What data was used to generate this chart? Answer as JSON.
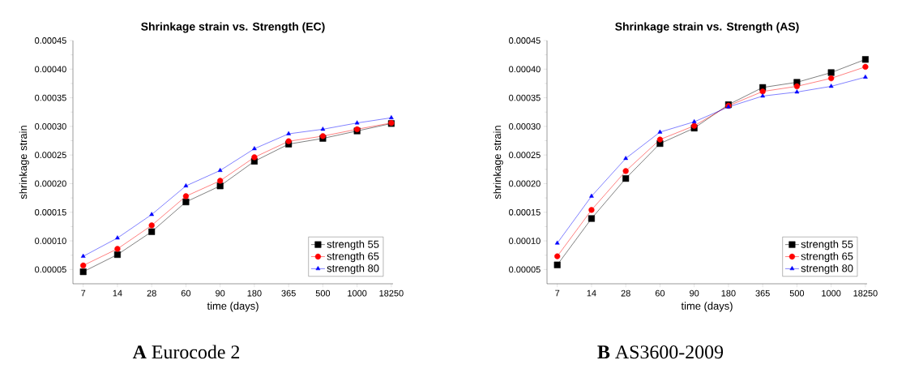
{
  "chart_data": [
    {
      "type": "line",
      "title": "Shrinkage strain vs. Strength (EC)",
      "xlabel": "time (days)",
      "ylabel": "shrinkage strain",
      "categories": [
        "7",
        "14",
        "28",
        "60",
        "90",
        "180",
        "365",
        "500",
        "1000",
        "18250"
      ],
      "ylim": [
        2.5e-05,
        0.00045
      ],
      "yticks": [
        {
          "value": 5e-05,
          "label": "0.00005"
        },
        {
          "value": 0.0001,
          "label": "0.00010"
        },
        {
          "value": 0.00015,
          "label": "0.00015"
        },
        {
          "value": 0.0002,
          "label": "0.00020"
        },
        {
          "value": 0.00025,
          "label": "0.00025"
        },
        {
          "value": 0.0003,
          "label": "0.00030"
        },
        {
          "value": 0.00035,
          "label": "0.00035"
        },
        {
          "value": 0.0004,
          "label": "0.00040"
        },
        {
          "value": 0.00045,
          "label": "0.00045"
        }
      ],
      "legend": "bottom right",
      "grid": false,
      "annotations": [
        "**A**  Eurocode 2"
      ],
      "series": [
        {
          "name": "strength 55",
          "color": "#000000",
          "marker": "square",
          "values": [
            4.6e-05,
            7.6e-05,
            0.000116,
            0.000168,
            0.000196,
            0.000239,
            0.000269,
            0.000279,
            0.000292,
            0.000305
          ]
        },
        {
          "name": "strength 65",
          "color": "#ff0000",
          "marker": "circle",
          "values": [
            5.7e-05,
            8.6e-05,
            0.000127,
            0.000178,
            0.000205,
            0.000246,
            0.000274,
            0.000283,
            0.000295,
            0.000306
          ]
        },
        {
          "name": "strength 80",
          "color": "#0000ff",
          "marker": "triangle",
          "values": [
            7.3e-05,
            0.000105,
            0.000146,
            0.000196,
            0.000223,
            0.000261,
            0.000287,
            0.000295,
            0.000306,
            0.000315
          ]
        }
      ]
    },
    {
      "type": "line",
      "title": "Shrinkage strain vs. Strength (AS)",
      "xlabel": "time (days)",
      "ylabel": "shrinkage strain",
      "categories": [
        "7",
        "14",
        "28",
        "60",
        "90",
        "180",
        "365",
        "500",
        "1000",
        "18250"
      ],
      "ylim": [
        2.5e-05,
        0.00045
      ],
      "yticks": [
        {
          "value": 5e-05,
          "label": "0.00005"
        },
        {
          "value": 0.0001,
          "label": "0.00010"
        },
        {
          "value": 0.00015,
          "label": "0.00015"
        },
        {
          "value": 0.0002,
          "label": "0.00020"
        },
        {
          "value": 0.00025,
          "label": "0.00025"
        },
        {
          "value": 0.0003,
          "label": "0.00030"
        },
        {
          "value": 0.00035,
          "label": "0.00035"
        },
        {
          "value": 0.0004,
          "label": "0.00040"
        },
        {
          "value": 0.00045,
          "label": "0.00045"
        }
      ],
      "legend": "bottom right",
      "grid": false,
      "annotations": [
        "**B**  AS3600-2009"
      ],
      "series": [
        {
          "name": "strength 55",
          "color": "#000000",
          "marker": "square",
          "values": [
            5.8e-05,
            0.000139,
            0.000209,
            0.00027,
            0.000297,
            0.000338,
            0.000368,
            0.000377,
            0.000394,
            0.000417
          ]
        },
        {
          "name": "strength 65",
          "color": "#ff0000",
          "marker": "circle",
          "values": [
            7.3e-05,
            0.000154,
            0.000222,
            0.000277,
            0.000301,
            0.000336,
            0.000361,
            0.00037,
            0.000384,
            0.000404
          ]
        },
        {
          "name": "strength 80",
          "color": "#0000ff",
          "marker": "triangle",
          "values": [
            9.6e-05,
            0.000178,
            0.000244,
            0.00029,
            0.000308,
            0.000334,
            0.000353,
            0.00036,
            0.00037,
            0.000386
          ]
        }
      ]
    }
  ]
}
